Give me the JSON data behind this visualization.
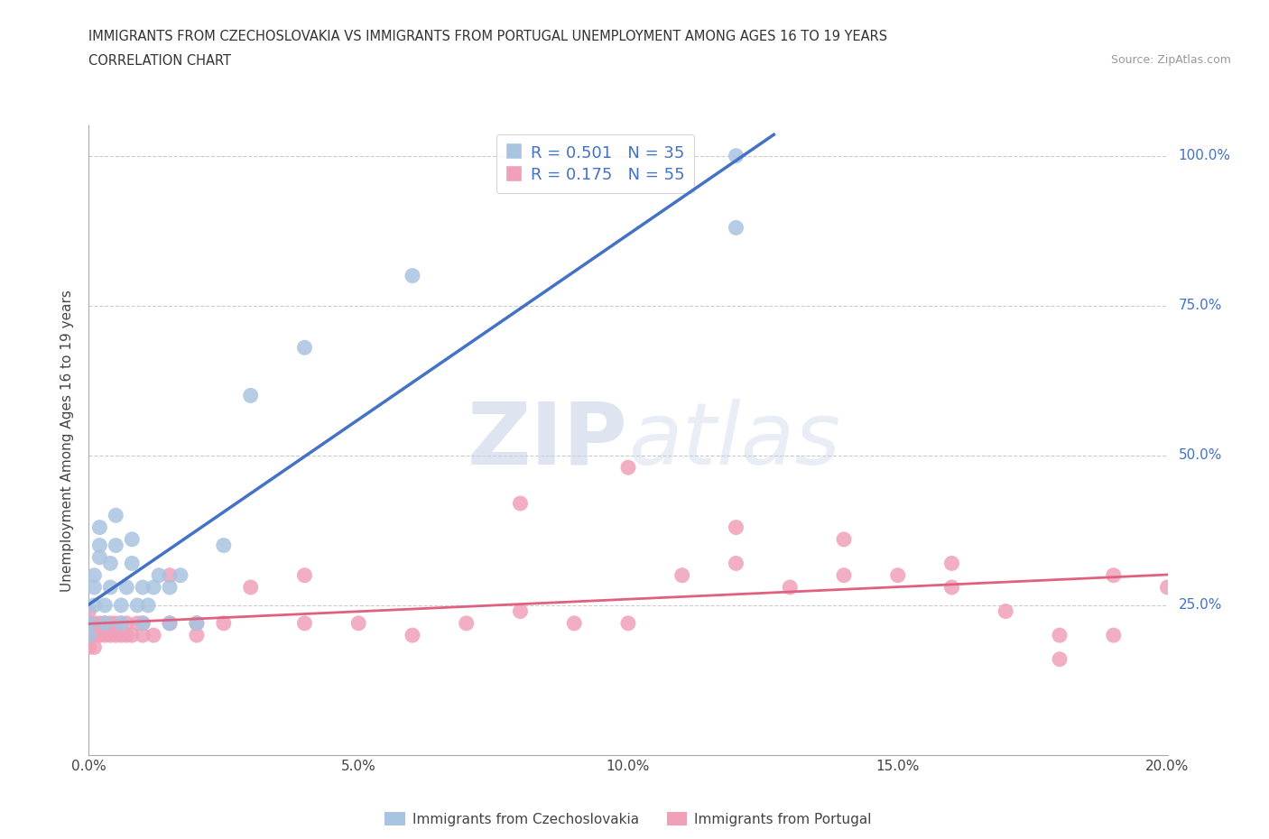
{
  "title_line1": "IMMIGRANTS FROM CZECHOSLOVAKIA VS IMMIGRANTS FROM PORTUGAL UNEMPLOYMENT AMONG AGES 16 TO 19 YEARS",
  "title_line2": "CORRELATION CHART",
  "source_text": "Source: ZipAtlas.com",
  "ylabel": "Unemployment Among Ages 16 to 19 years",
  "xlim": [
    0.0,
    0.2
  ],
  "ylim": [
    0.0,
    1.05
  ],
  "xtick_labels": [
    "0.0%",
    "5.0%",
    "10.0%",
    "15.0%",
    "20.0%"
  ],
  "xtick_values": [
    0.0,
    0.05,
    0.1,
    0.15,
    0.2
  ],
  "ytick_labels_right": [
    "100.0%",
    "75.0%",
    "50.0%",
    "25.0%"
  ],
  "ytick_values_right": [
    1.0,
    0.75,
    0.5,
    0.25
  ],
  "color_czech": "#a8c4e0",
  "color_portugal": "#f0a0b8",
  "line_color_czech": "#4472c4",
  "line_color_portugal": "#e06080",
  "R_czech": 0.501,
  "N_czech": 35,
  "R_portugal": 0.175,
  "N_portugal": 55,
  "watermark_zip": "ZIP",
  "watermark_atlas": "atlas",
  "legend_label_czech": "Immigrants from Czechoslovakia",
  "legend_label_portugal": "Immigrants from Portugal",
  "czech_x": [
    0.0,
    0.0,
    0.001,
    0.001,
    0.001,
    0.002,
    0.002,
    0.002,
    0.003,
    0.003,
    0.004,
    0.004,
    0.005,
    0.005,
    0.006,
    0.006,
    0.007,
    0.008,
    0.008,
    0.009,
    0.01,
    0.01,
    0.011,
    0.012,
    0.013,
    0.015,
    0.015,
    0.017,
    0.02,
    0.025,
    0.03,
    0.04,
    0.06,
    0.12,
    0.12
  ],
  "czech_y": [
    0.2,
    0.22,
    0.25,
    0.28,
    0.3,
    0.33,
    0.35,
    0.38,
    0.22,
    0.25,
    0.28,
    0.32,
    0.35,
    0.4,
    0.22,
    0.25,
    0.28,
    0.32,
    0.36,
    0.25,
    0.22,
    0.28,
    0.25,
    0.28,
    0.3,
    0.22,
    0.28,
    0.3,
    0.22,
    0.35,
    0.6,
    0.68,
    0.8,
    0.88,
    1.0
  ],
  "portugal_x": [
    0.0,
    0.0,
    0.0,
    0.0,
    0.001,
    0.001,
    0.001,
    0.002,
    0.002,
    0.003,
    0.003,
    0.004,
    0.004,
    0.005,
    0.005,
    0.006,
    0.006,
    0.007,
    0.007,
    0.008,
    0.009,
    0.01,
    0.01,
    0.012,
    0.015,
    0.015,
    0.02,
    0.02,
    0.025,
    0.03,
    0.04,
    0.04,
    0.05,
    0.06,
    0.07,
    0.08,
    0.09,
    0.1,
    0.11,
    0.12,
    0.12,
    0.13,
    0.14,
    0.15,
    0.16,
    0.17,
    0.18,
    0.19,
    0.19,
    0.2,
    0.08,
    0.1,
    0.14,
    0.16,
    0.18
  ],
  "portugal_y": [
    0.2,
    0.22,
    0.24,
    0.18,
    0.2,
    0.22,
    0.18,
    0.2,
    0.22,
    0.2,
    0.22,
    0.2,
    0.22,
    0.2,
    0.22,
    0.2,
    0.22,
    0.2,
    0.22,
    0.2,
    0.22,
    0.2,
    0.22,
    0.2,
    0.22,
    0.3,
    0.2,
    0.22,
    0.22,
    0.28,
    0.22,
    0.3,
    0.22,
    0.2,
    0.22,
    0.24,
    0.22,
    0.22,
    0.3,
    0.32,
    0.38,
    0.28,
    0.3,
    0.3,
    0.32,
    0.24,
    0.2,
    0.3,
    0.2,
    0.28,
    0.42,
    0.48,
    0.36,
    0.28,
    0.16
  ]
}
